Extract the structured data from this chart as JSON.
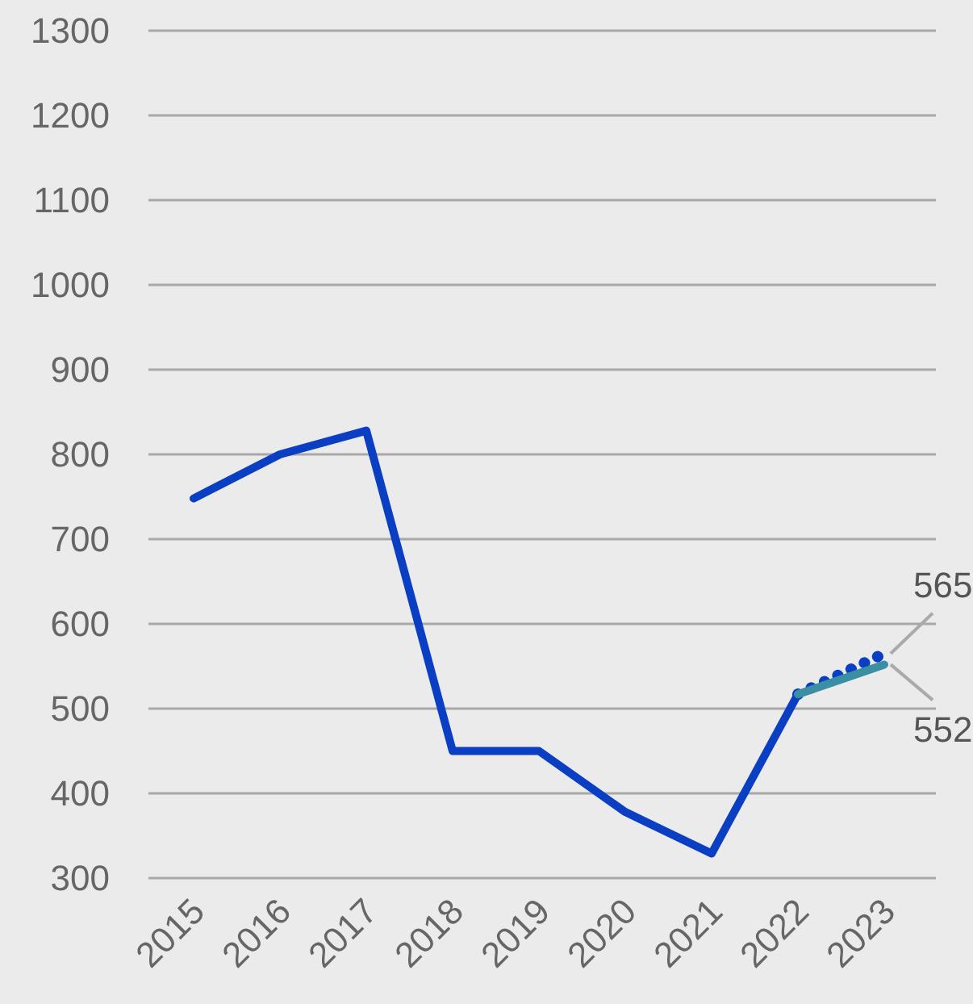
{
  "chart_data": {
    "type": "line",
    "categories": [
      "2015",
      "2016",
      "2017",
      "2018",
      "2019",
      "2020",
      "2021",
      "2022",
      "2023"
    ],
    "series": [
      {
        "color": "#0a3fc4",
        "line_style": "solid",
        "values": [
          748,
          800,
          828,
          450,
          450,
          378,
          329,
          517,
          null
        ]
      },
      {
        "color": "#0a3fc4",
        "line_style": "dotted",
        "values": [
          null,
          null,
          null,
          null,
          null,
          null,
          null,
          517,
          565
        ],
        "value_labels": [
          null,
          null,
          null,
          null,
          null,
          null,
          null,
          null,
          "565"
        ]
      },
      {
        "color": "#3a8fa3",
        "line_style": "solid",
        "values": [
          null,
          null,
          null,
          null,
          null,
          null,
          null,
          517,
          552
        ],
        "value_labels": [
          null,
          null,
          null,
          null,
          null,
          null,
          null,
          null,
          "552"
        ]
      }
    ],
    "ylim": [
      300,
      1300
    ],
    "yticks": [
      300,
      400,
      500,
      600,
      700,
      800,
      900,
      1000,
      1100,
      1200,
      1300
    ],
    "grid": "y"
  }
}
